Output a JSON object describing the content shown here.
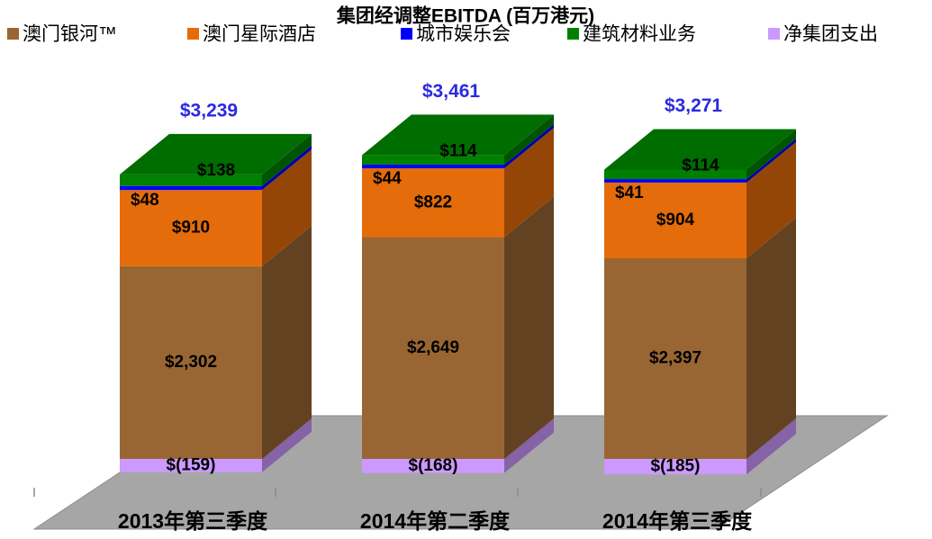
{
  "chart_data": {
    "type": "bar3d_stacked",
    "title": "集团经调整EBITDA (百万港元)",
    "categories": [
      "2013年第三季度",
      "2014年第二季度",
      "2014年第三季度"
    ],
    "series": [
      {
        "name": "澳门银河™",
        "color": "#996633",
        "values": [
          2302,
          2649,
          2397
        ],
        "value_labels": [
          "$2,302",
          "$2,649",
          "$2,397"
        ]
      },
      {
        "name": "澳门星际酒店",
        "color": "#e46c0a",
        "values": [
          910,
          822,
          904
        ],
        "value_labels": [
          "$910",
          "$822",
          "$904"
        ]
      },
      {
        "name": "城市娱乐会",
        "color": "#0000ff",
        "values": [
          48,
          44,
          41
        ],
        "value_labels": [
          "$48",
          "$44",
          "$41"
        ]
      },
      {
        "name": "建筑材料业务",
        "color": "#008000",
        "values": [
          138,
          114,
          114
        ],
        "value_labels": [
          "$138",
          "$114",
          "$114"
        ]
      },
      {
        "name": "净集团支出",
        "color": "#cc99ff",
        "values": [
          -159,
          -168,
          -185
        ],
        "value_labels": [
          "$(159)",
          "$(168)",
          "$(185)"
        ]
      }
    ],
    "totals": {
      "color": "#2a2ae0",
      "values": [
        3239,
        3461,
        3271
      ],
      "value_labels": [
        "$3,239",
        "$3,461",
        "$3,271"
      ]
    }
  }
}
